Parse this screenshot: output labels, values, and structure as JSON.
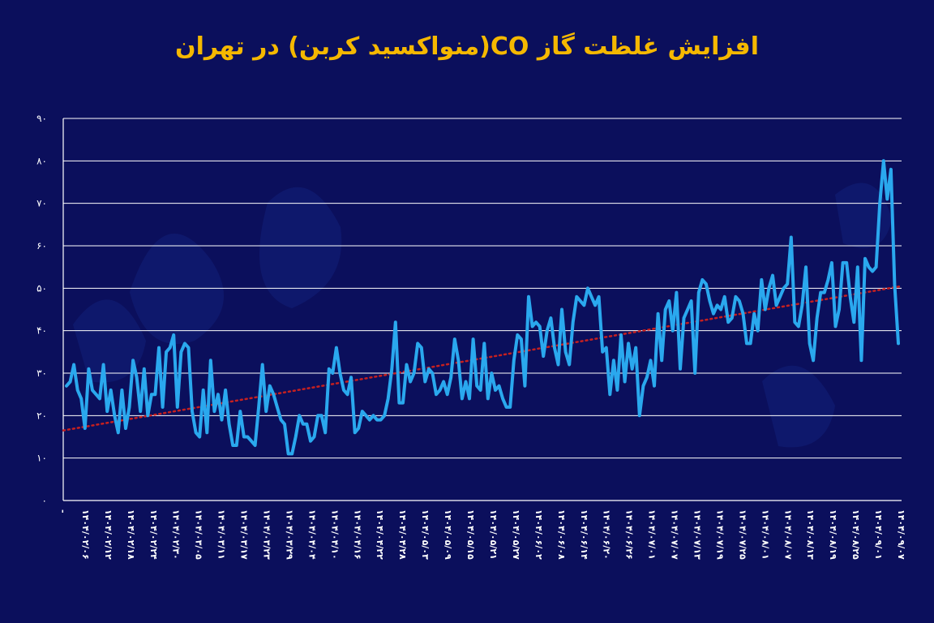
{
  "chart_data": {
    "type": "line",
    "title": "افزایش غلظت گاز CO(منواکسید کربن) در تهران",
    "xlabel": "",
    "ylabel": "",
    "ylim": [
      0,
      90
    ],
    "yticks": [
      "۰",
      "۱۰",
      "۲۰",
      "۳۰",
      "۴۰",
      "۵۰",
      "۶۰",
      "۷۰",
      "۸۰",
      "۹۰"
    ],
    "grid": true,
    "legend": "none",
    "x_tick_labels": [
      "-",
      "۱۴۰۴/۰۲/۰۶",
      "۱۴۰۴/۰۲/۱۲",
      "۱۴۰۴/۰۲/۱۸",
      "۱۴۰۴/۰۲/۲۴",
      "۱۴۰۴/۰۲/۳۰",
      "۱۴۰۴/۰۳/۰۵",
      "۱۴۰۴/۰۳/۱۱",
      "۱۴۰۴/۰۳/۱۷",
      "۱۴۰۴/۰۳/۲۳",
      "۱۴۰۴/۰۳/۲۹",
      "۱۴۰۴/۰۴/۰۴",
      "۱۴۰۴/۰۴/۱۰",
      "۱۴۰۴/۰۴/۱۶",
      "۱۴۰۴/۰۴/۲۲",
      "۱۴۰۴/۰۴/۲۸",
      "۱۴۰۴/۰۵/۰۳",
      "۱۴۰۴/۰۵/۰۹",
      "۱۴۰۴/۰۵/۱۵",
      "۱۴۰۴/۰۵/۲۱",
      "۱۴۰۴/۰۵/۲۷",
      "۱۴۰۴/۰۶/۰۲",
      "۱۴۰۴/۰۶/۰۸",
      "۱۴۰۴/۰۶/۱۴",
      "۱۴۰۴/۰۶/۲۰",
      "۱۴۰۴/۰۶/۲۶",
      "۱۴۰۴/۰۷/۰۱",
      "۱۴۰۴/۰۷/۰۷",
      "۱۴۰۴/۰۷/۱۳",
      "۱۴۰۴/۰۷/۱۹",
      "۱۴۰۴/۰۷/۲۵",
      "۱۴۰۴/۰۸/۰۱",
      "۱۴۰۴/۰۸/۰۷",
      "۱۴۰۴/۰۸/۱۳",
      "۱۴۰۴/۰۸/۱۹",
      "۱۴۰۴/۰۸/۲۵",
      "۱۴۰۴/۰۹/۰۱",
      "۱۴۰۴/۰۹/۰۷"
    ],
    "series": [
      {
        "color": "#2aa8ee",
        "values": [
          27,
          28,
          32,
          26,
          24,
          17,
          31,
          26,
          25,
          24,
          32,
          21,
          26,
          20,
          16,
          26,
          17,
          22,
          33,
          29,
          21,
          31,
          20,
          25,
          25,
          36,
          22,
          35,
          36,
          39,
          22,
          35,
          37,
          36,
          21,
          16,
          15,
          26,
          16,
          33,
          21,
          25,
          19,
          26,
          18,
          13,
          13,
          21,
          15,
          15,
          14,
          13,
          22,
          32,
          21,
          27,
          25,
          22,
          19,
          18,
          11,
          11,
          15,
          20,
          18,
          18,
          14,
          15,
          20,
          20,
          16,
          31,
          30,
          36,
          30,
          26,
          25,
          29,
          16,
          17,
          21,
          20,
          19,
          20,
          19,
          19,
          20,
          24,
          31,
          42,
          23,
          23,
          32,
          28,
          30,
          37,
          36,
          28,
          31,
          30,
          25,
          26,
          28,
          25,
          29,
          38,
          33,
          24,
          28,
          24,
          38,
          27,
          26,
          37,
          24,
          30,
          26,
          27,
          24,
          22,
          22,
          33,
          39,
          38,
          27,
          48,
          41,
          42,
          41,
          34,
          40,
          43,
          36,
          32,
          45,
          35,
          32,
          42,
          48,
          47,
          46,
          50,
          48,
          46,
          48,
          35,
          36,
          25,
          33,
          26,
          39,
          28,
          37,
          31,
          36,
          20,
          27,
          29,
          33,
          27,
          44,
          33,
          45,
          47,
          40,
          49,
          31,
          43,
          45,
          47,
          30,
          49,
          52,
          51,
          47,
          44,
          46,
          45,
          48,
          42,
          43,
          48,
          47,
          44,
          37,
          37,
          44,
          40,
          52,
          45,
          50,
          53,
          46,
          48,
          50,
          51,
          62,
          42,
          41,
          46,
          55,
          37,
          33,
          43,
          49,
          49,
          52,
          56,
          41,
          45,
          56,
          56,
          48,
          42,
          55,
          33,
          57,
          55,
          54,
          55,
          70,
          80,
          71,
          78,
          51,
          37
        ]
      }
    ],
    "trendline": {
      "color": "#c62020",
      "style": "dotted",
      "start_value": 16.5,
      "end_value": 50.5
    }
  }
}
